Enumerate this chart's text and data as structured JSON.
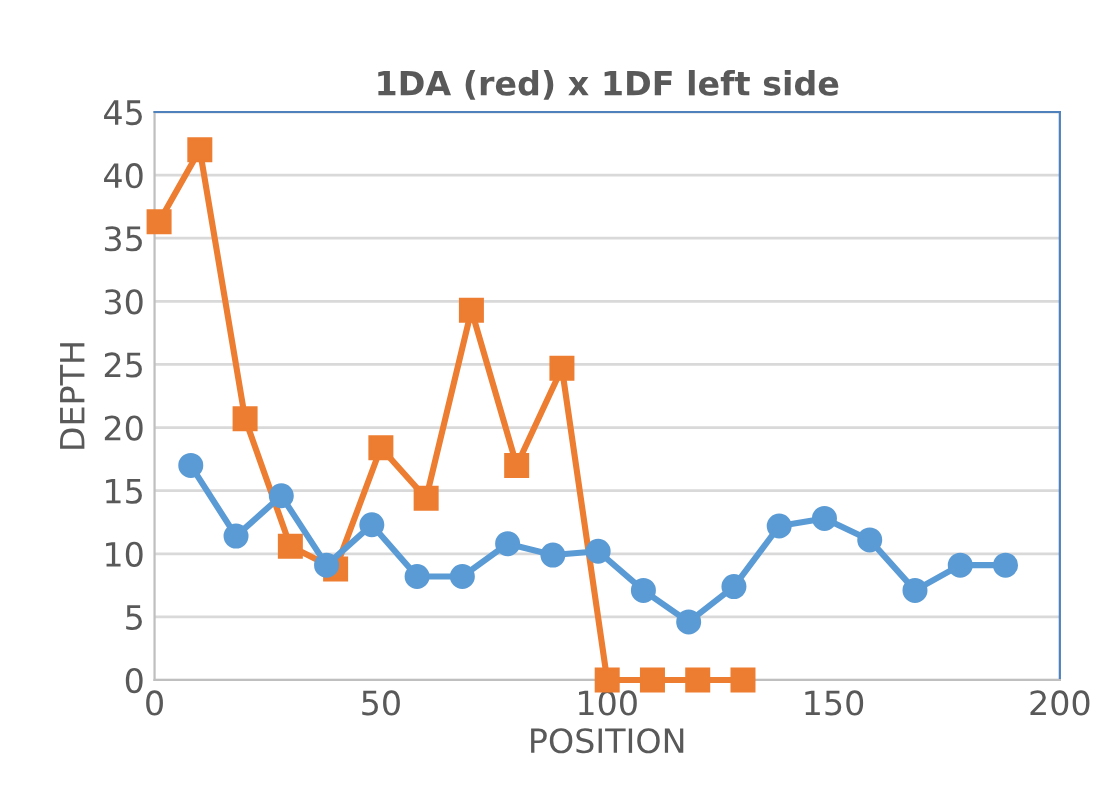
{
  "chart_data": {
    "type": "line",
    "title": "1DA (red) x 1DF left side",
    "xlabel": "POSITION",
    "ylabel": "DEPTH",
    "xlim": [
      0,
      200
    ],
    "xticks": [
      0,
      50,
      100,
      150,
      200
    ],
    "ylim": [
      0,
      45
    ],
    "yticks": [
      0,
      5,
      10,
      15,
      20,
      25,
      30,
      35,
      40,
      45
    ],
    "grid": "y",
    "legend": false,
    "series": [
      {
        "color": "#5b9bd5",
        "marker": "circle",
        "x": [
          8,
          18,
          28,
          38,
          48,
          58,
          68,
          78,
          88,
          98,
          108,
          118,
          128,
          138,
          148,
          158,
          168,
          178,
          188
        ],
        "values": [
          17,
          11.4,
          14.6,
          9.1,
          12.3,
          8.2,
          8.2,
          10.8,
          9.9,
          10.2,
          7.1,
          4.6,
          7.4,
          12.2,
          12.8,
          11.1,
          7.1,
          9.1,
          9.1
        ]
      },
      {
        "color": "#ed7d31",
        "marker": "square",
        "x": [
          1,
          10,
          20,
          30,
          40,
          50,
          60,
          70,
          80,
          90,
          100,
          110,
          120,
          130
        ],
        "values": [
          36.3,
          42,
          20.7,
          10.6,
          8.8,
          18.4,
          14.4,
          29.3,
          17,
          24.7,
          0,
          0,
          0,
          0
        ]
      }
    ]
  }
}
